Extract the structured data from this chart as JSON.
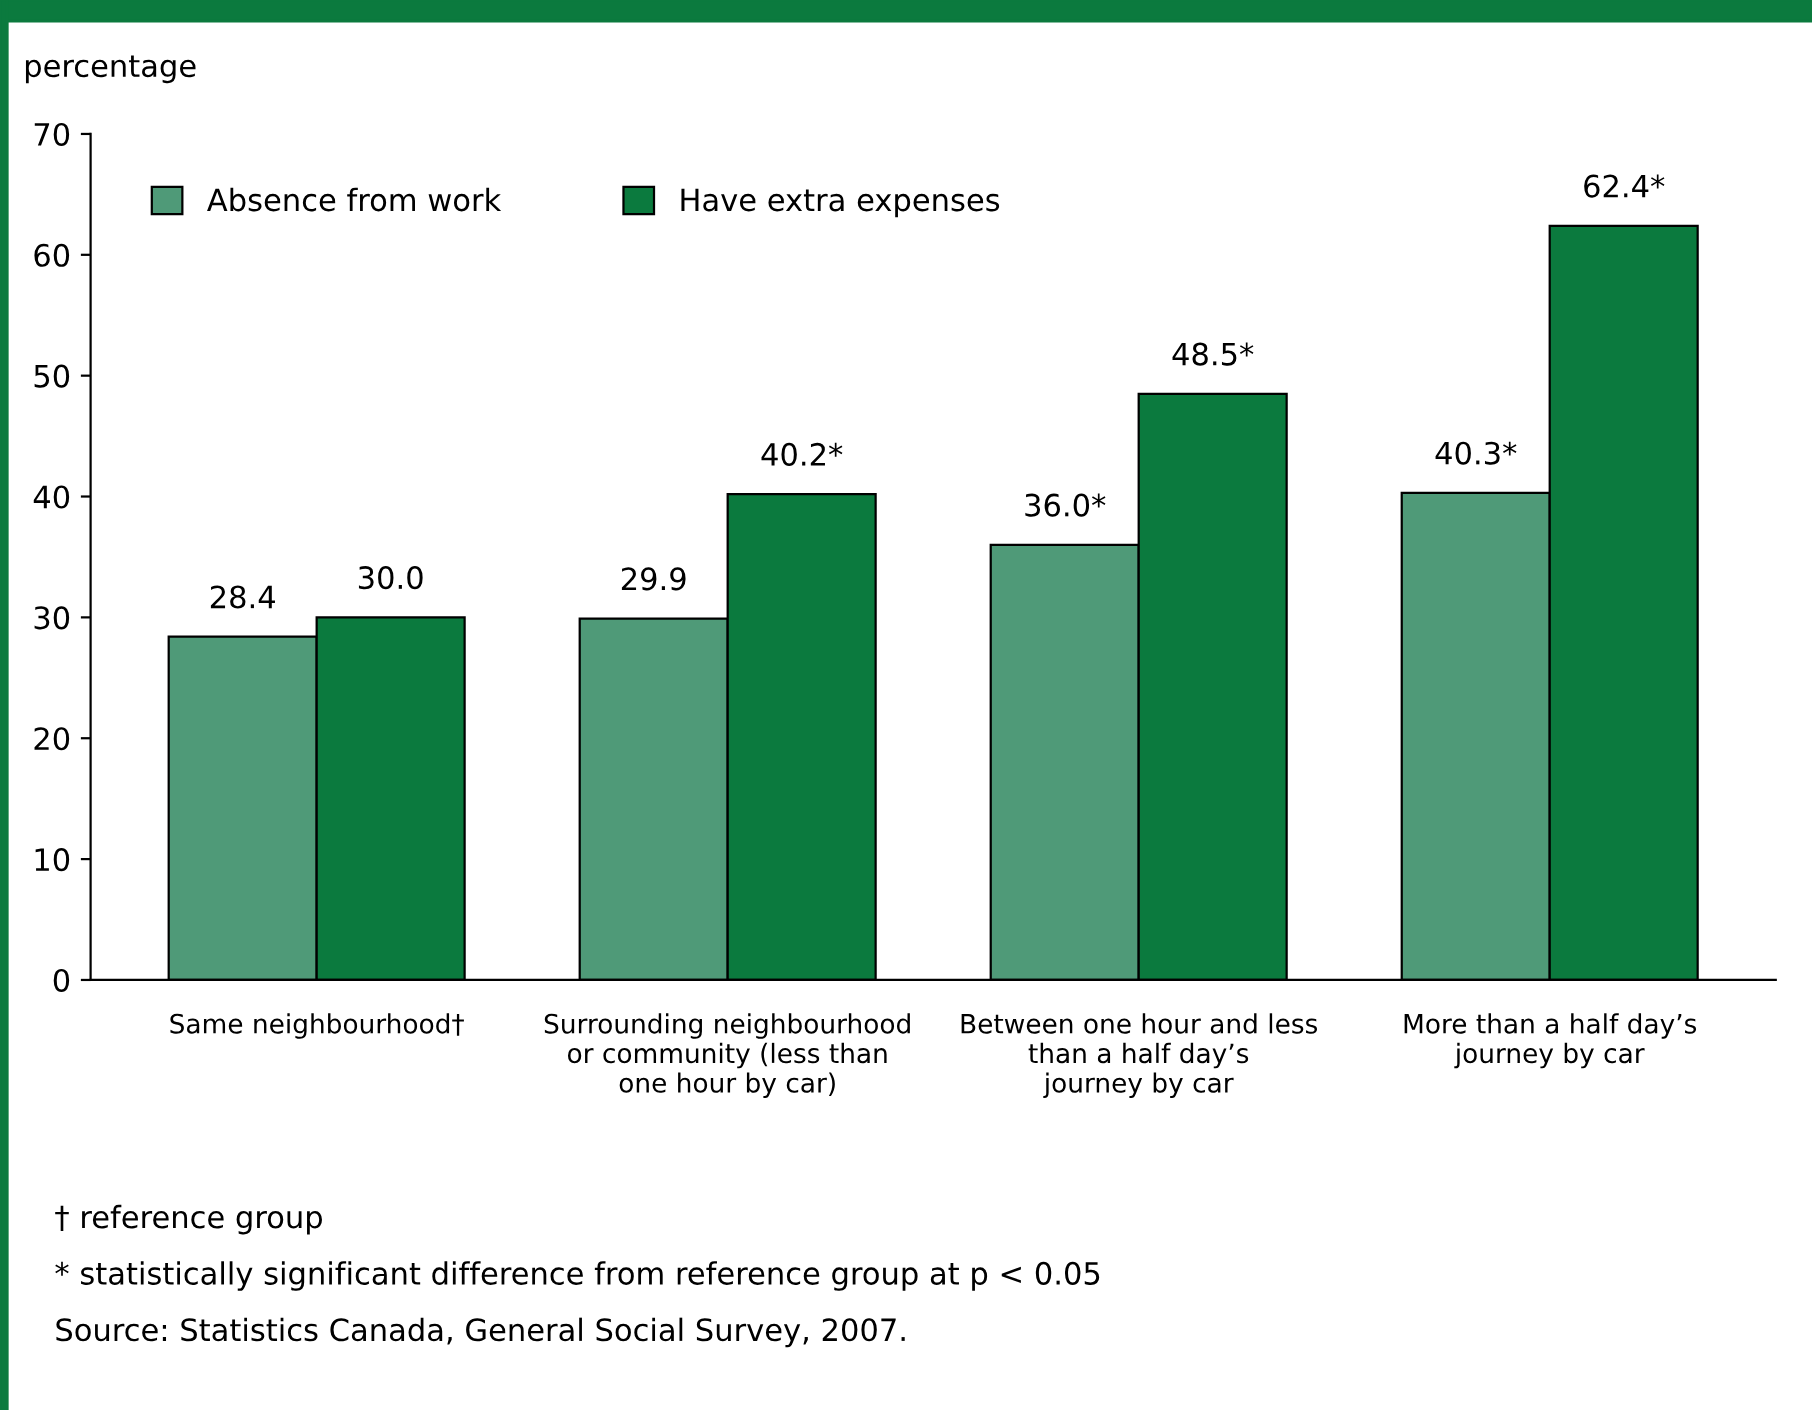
{
  "chart_data": {
    "type": "bar",
    "ylabel": "percentage",
    "categories": [
      "Same neighbourhood†",
      "Surrounding neighbourhood\nor community (less than\none hour by car)",
      "Between one hour and less\nthan a half day’s\njourney by car",
      "More than a half day’s\njourney by car"
    ],
    "series": [
      {
        "name": "Absence from work",
        "color": "#4f9a78",
        "values": [
          28.4,
          29.9,
          36.0,
          40.3
        ],
        "value_labels": [
          "28.4",
          "29.9",
          "36.0*",
          "40.3*"
        ]
      },
      {
        "name": "Have extra expenses",
        "color": "#0b7a3e",
        "values": [
          30.0,
          40.2,
          48.5,
          62.4
        ],
        "value_labels": [
          "30.0",
          "40.2*",
          "48.5*",
          "62.4*"
        ]
      }
    ],
    "ylim": [
      0,
      70
    ],
    "yticks": [
      0,
      10,
      20,
      30,
      40,
      50,
      60,
      70
    ],
    "grid": false,
    "legend": "top left",
    "annotations": [
      "† reference group",
      "* statistically significant difference from reference group at p < 0.05",
      "Source: Statistics Canada, General Social Survey, 2007."
    ]
  }
}
